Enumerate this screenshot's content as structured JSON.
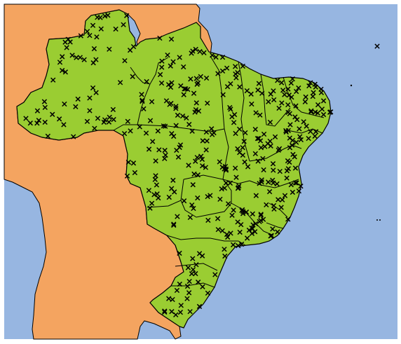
{
  "map": {
    "colors": {
      "ocean": "#97b6e1",
      "land_other": "#f4a460",
      "land_brazil": "#9acd32",
      "borders": "#000000",
      "markers": "#000000"
    },
    "marker_symbol": "x",
    "regions": [
      "ocean",
      "south-america-land",
      "brazil-land",
      "brazil-state-borders",
      "atlantic-islands"
    ],
    "marker_count_estimate": 420
  }
}
